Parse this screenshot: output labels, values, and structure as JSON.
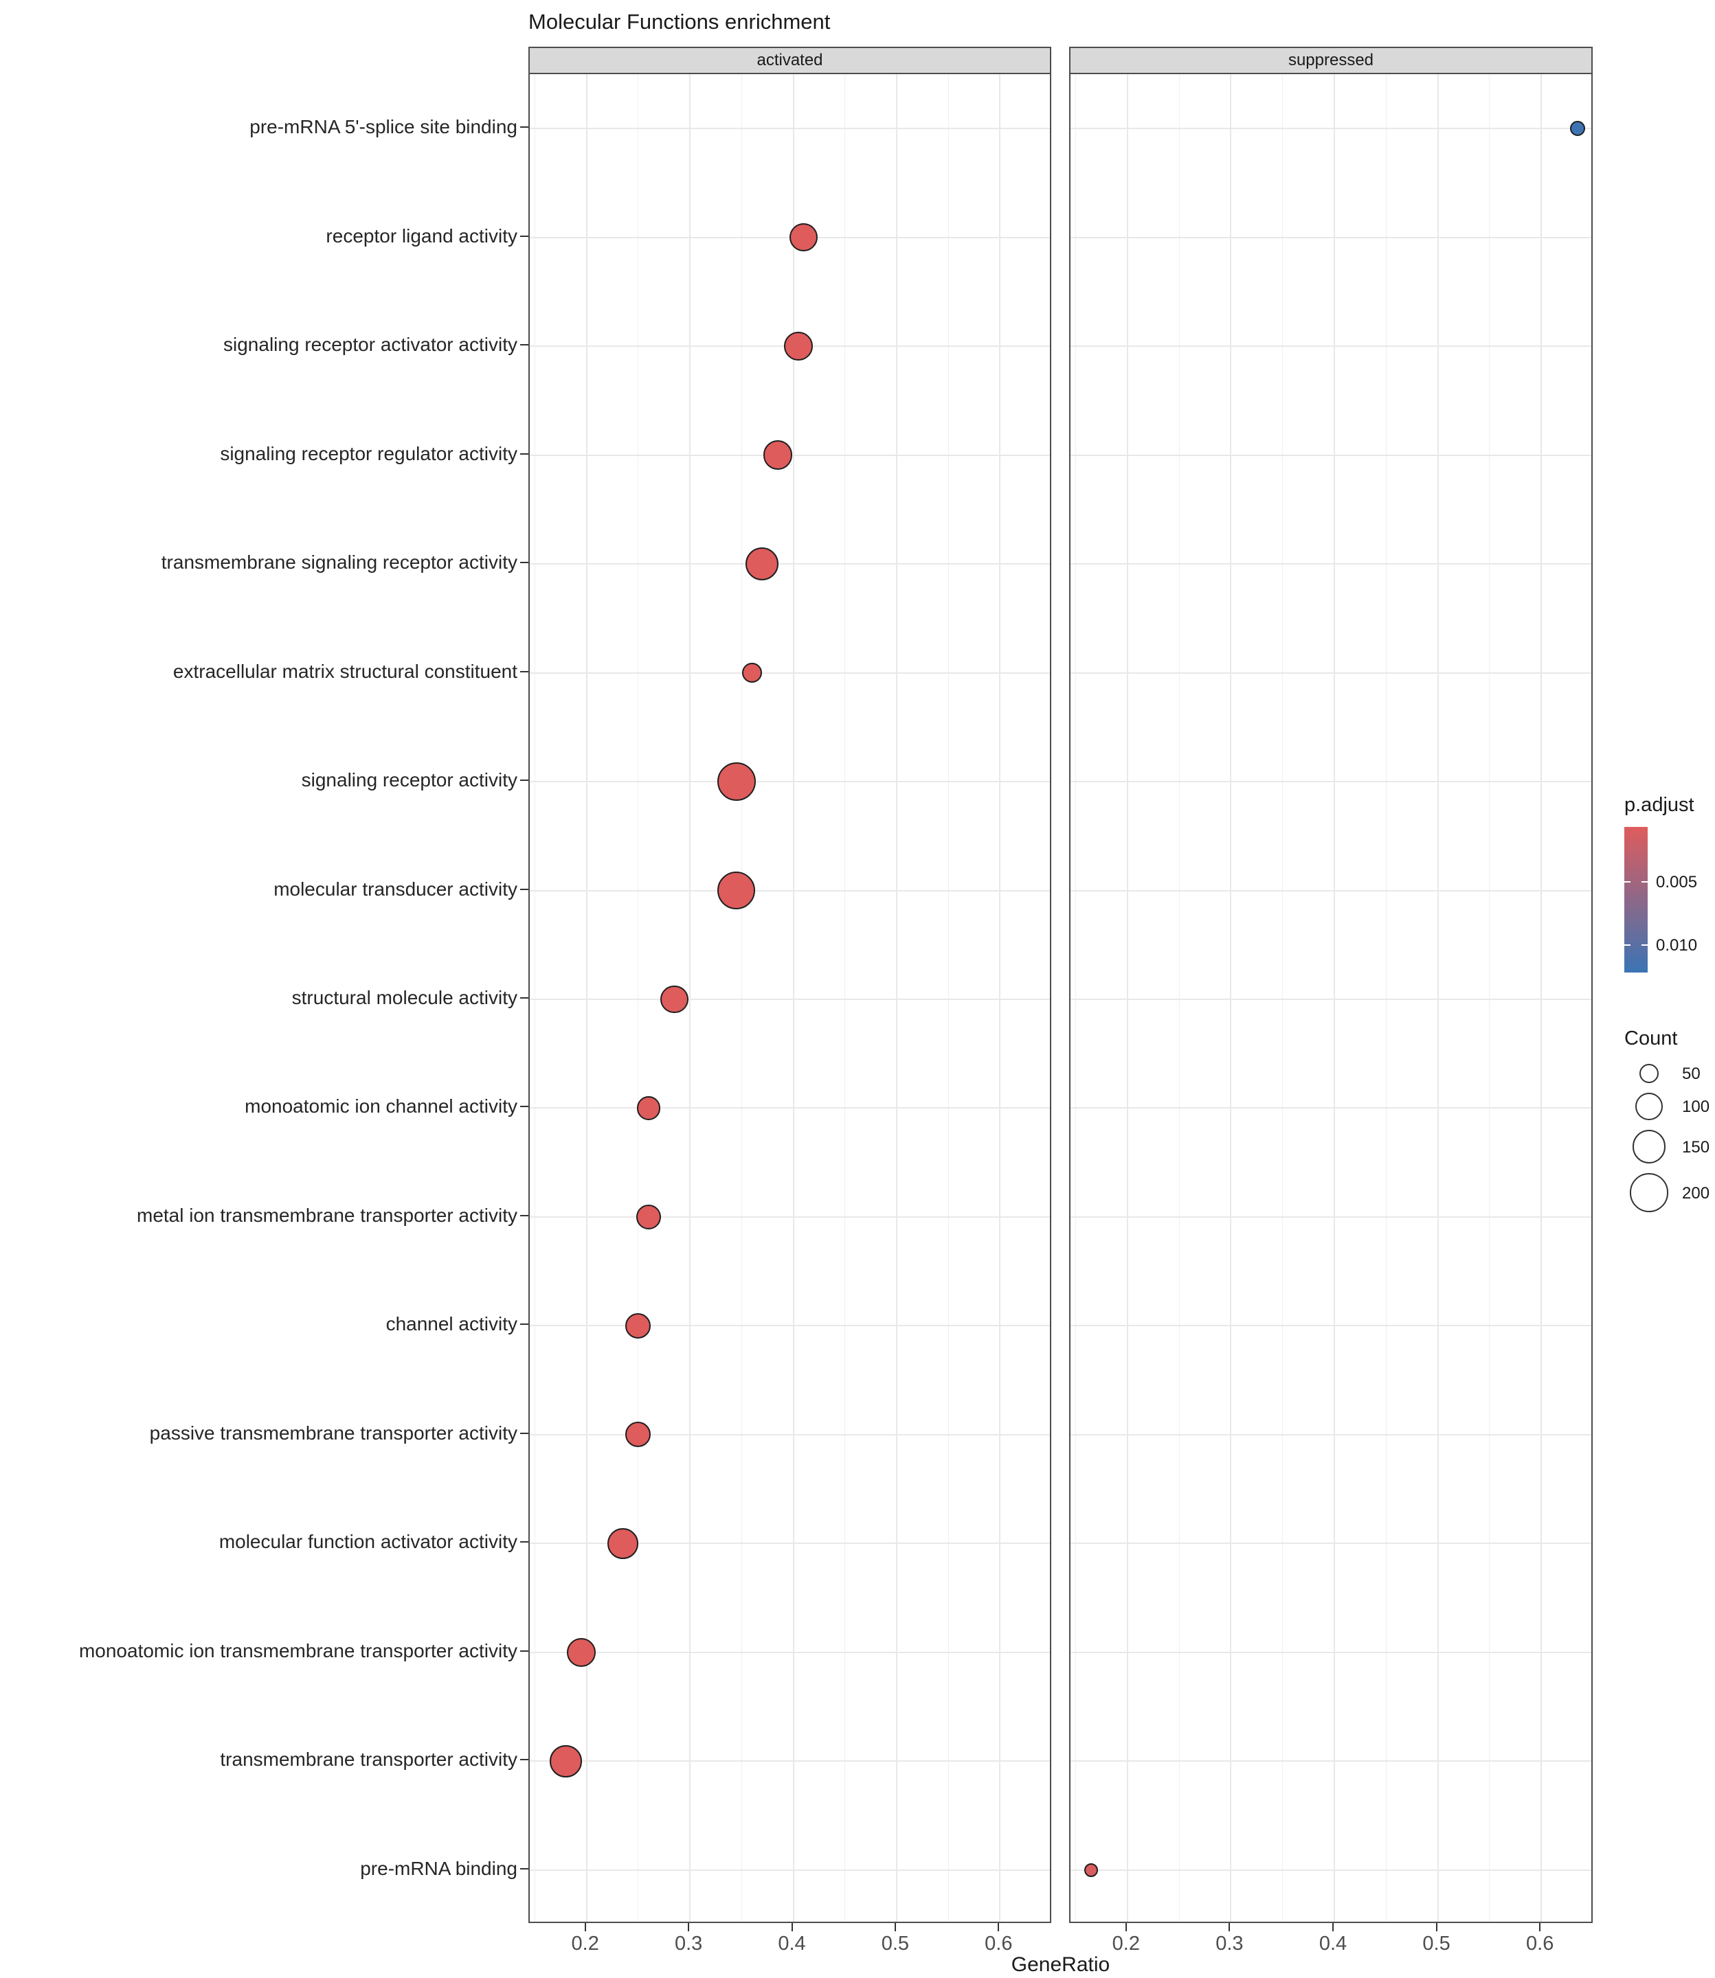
{
  "title": "Molecular Functions enrichment",
  "x_axis": {
    "label": "GeneRatio",
    "tick_labels": [
      "0.2",
      "0.3",
      "0.4",
      "0.5",
      "0.6"
    ],
    "tick_values": [
      0.2,
      0.3,
      0.4,
      0.5,
      0.6
    ],
    "minor_tick_values": [
      0.15,
      0.25,
      0.35,
      0.45,
      0.55,
      0.65
    ],
    "domain": [
      0.145,
      0.651
    ]
  },
  "facets": [
    {
      "label": "activated"
    },
    {
      "label": "suppressed"
    }
  ],
  "legend": {
    "p_adjust": {
      "title": "p.adjust",
      "tick_labels": [
        "0.005",
        "0.010"
      ],
      "tick_values": [
        0.005,
        0.01
      ],
      "domain": [
        0.0006,
        0.0122
      ],
      "color_low": "#DF5C5C",
      "color_high": "#3B74B5"
    },
    "count": {
      "title": "Count",
      "values": [
        50,
        100,
        150,
        200
      ],
      "labels": [
        "50",
        "100",
        "150",
        "200"
      ]
    }
  },
  "chart_data": {
    "type": "scatter",
    "title": "Molecular Functions enrichment",
    "xlabel": "GeneRatio",
    "ylabel": "",
    "x_range": [
      0.145,
      0.651
    ],
    "facets": [
      "activated",
      "suppressed"
    ],
    "size_encoding": "Count",
    "color_encoding": "p.adjust",
    "grid": true,
    "legend_position": "right",
    "points": [
      {
        "term": "pre-mRNA 5'-splice site binding",
        "facet": "suppressed",
        "gene_ratio": 0.635,
        "count": 30,
        "p_adjust": 0.012
      },
      {
        "term": "receptor ligand activity",
        "facet": "activated",
        "gene_ratio": 0.41,
        "count": 105,
        "p_adjust": 0.0001
      },
      {
        "term": "signaling receptor activator activity",
        "facet": "activated",
        "gene_ratio": 0.405,
        "count": 110,
        "p_adjust": 0.0001
      },
      {
        "term": "signaling receptor regulator activity",
        "facet": "activated",
        "gene_ratio": 0.385,
        "count": 115,
        "p_adjust": 0.0001
      },
      {
        "term": "transmembrane signaling receptor activity",
        "facet": "activated",
        "gene_ratio": 0.37,
        "count": 145,
        "p_adjust": 0.0001
      },
      {
        "term": "extracellular matrix structural constituent",
        "facet": "activated",
        "gene_ratio": 0.36,
        "count": 55,
        "p_adjust": 0.0001
      },
      {
        "term": "signaling receptor activity",
        "facet": "activated",
        "gene_ratio": 0.345,
        "count": 195,
        "p_adjust": 0.0001
      },
      {
        "term": "molecular transducer activity",
        "facet": "activated",
        "gene_ratio": 0.345,
        "count": 190,
        "p_adjust": 0.0001
      },
      {
        "term": "structural molecule activity",
        "facet": "activated",
        "gene_ratio": 0.285,
        "count": 105,
        "p_adjust": 0.0001
      },
      {
        "term": "monoatomic ion channel activity",
        "facet": "activated",
        "gene_ratio": 0.26,
        "count": 75,
        "p_adjust": 0.0001
      },
      {
        "term": "metal ion transmembrane transporter activity",
        "facet": "activated",
        "gene_ratio": 0.26,
        "count": 80,
        "p_adjust": 0.0001
      },
      {
        "term": "channel activity",
        "facet": "activated",
        "gene_ratio": 0.25,
        "count": 85,
        "p_adjust": 0.0001
      },
      {
        "term": "passive transmembrane transporter activity",
        "facet": "activated",
        "gene_ratio": 0.25,
        "count": 85,
        "p_adjust": 0.0001
      },
      {
        "term": "molecular function activator activity",
        "facet": "activated",
        "gene_ratio": 0.235,
        "count": 125,
        "p_adjust": 0.0001
      },
      {
        "term": "monoatomic ion transmembrane transporter activity",
        "facet": "activated",
        "gene_ratio": 0.195,
        "count": 110,
        "p_adjust": 0.0001
      },
      {
        "term": "transmembrane transporter activity",
        "facet": "activated",
        "gene_ratio": 0.18,
        "count": 135,
        "p_adjust": 0.0001
      },
      {
        "term": "pre-mRNA binding",
        "facet": "suppressed",
        "gene_ratio": 0.165,
        "count": 25,
        "p_adjust": 0.001
      }
    ]
  }
}
